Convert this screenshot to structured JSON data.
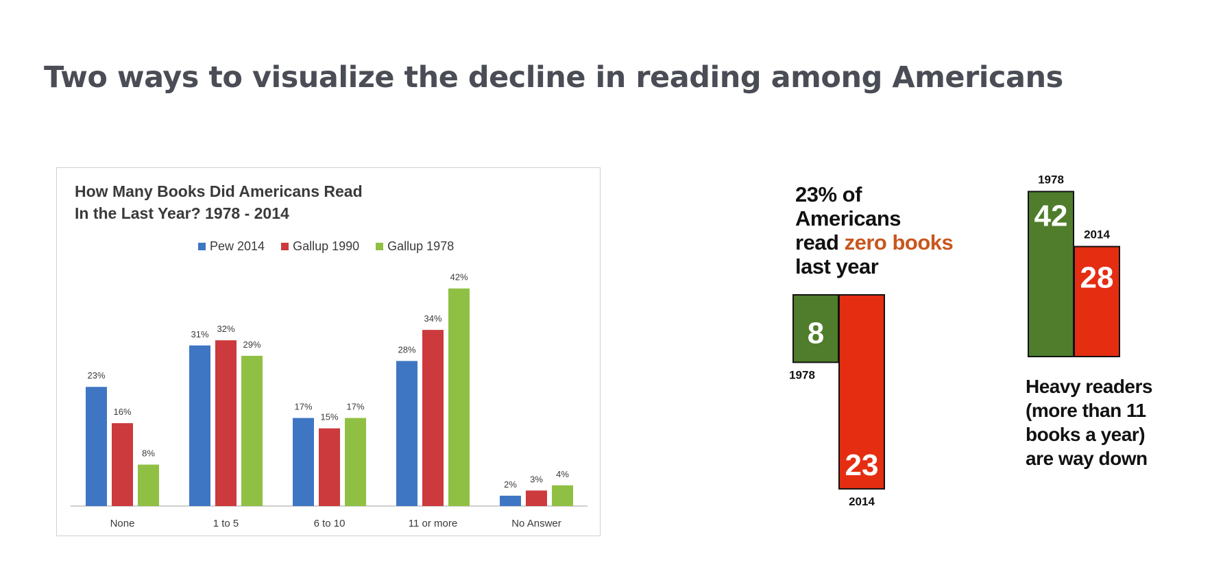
{
  "title": "Two ways to visualize the decline in reading among Americans",
  "colors": {
    "pew_2014": "#3f76c4",
    "gallup_1990": "#cc3a3d",
    "gallup_1978": "#90c043",
    "infographic_green": "#4f7d2c",
    "infographic_red": "#e52d12"
  },
  "chart_data": [
    {
      "type": "bar",
      "title_lines": [
        "How Many Books Did Americans Read",
        "In the Last Year? 1978 - 2014"
      ],
      "categories": [
        "None",
        "1 to 5",
        "6 to 10",
        "11 or more",
        "No Answer"
      ],
      "series": [
        {
          "name": "Pew 2014",
          "values": [
            23,
            31,
            17,
            28,
            2
          ]
        },
        {
          "name": "Gallup 1990",
          "values": [
            16,
            32,
            15,
            34,
            3
          ]
        },
        {
          "name": "Gallup 1978",
          "values": [
            8,
            29,
            17,
            42,
            4
          ]
        }
      ],
      "data_labels": [
        [
          "23%",
          "31%",
          "17%",
          "28%",
          "2%"
        ],
        [
          "16%",
          "32%",
          "15%",
          "34%",
          "3%"
        ],
        [
          "8%",
          "29%",
          "17%",
          "42%",
          "4%"
        ]
      ],
      "legend_position": "top",
      "ylim": [
        0,
        45
      ],
      "grid": false
    },
    {
      "type": "bar",
      "note": "zero books",
      "bars": [
        {
          "year": "1978",
          "value": 8
        },
        {
          "year": "2014",
          "value": 23
        }
      ]
    },
    {
      "type": "bar",
      "note": "heavy readers",
      "bars": [
        {
          "year": "1978",
          "value": 42
        },
        {
          "year": "2014",
          "value": 28
        }
      ]
    }
  ],
  "infographic_left": {
    "line1": "23% of",
    "line2": "Americans",
    "line3_pre": "read ",
    "line3_highlight": "zero books",
    "line4": "last year"
  },
  "infographic_right": {
    "line1": "Heavy readers",
    "line2": "(more than 11",
    "line3": "books a year)",
    "line4": "are way down"
  }
}
